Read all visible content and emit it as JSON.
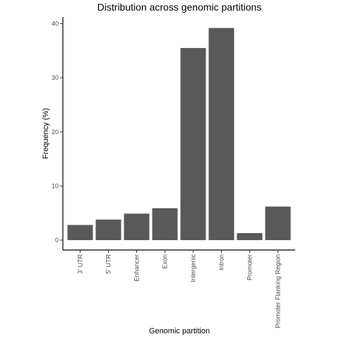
{
  "chart_data": {
    "type": "bar",
    "title": "Distribution across genomic partitions",
    "xlabel": "Genomic partition",
    "ylabel": "Frequency (%)",
    "categories": [
      "3' UTR",
      "5' UTR",
      "Enhancer",
      "Exon",
      "Intergenic",
      "Intron",
      "Promoter",
      "Promoter Flanking Region"
    ],
    "values": [
      2.8,
      3.8,
      4.9,
      5.9,
      35.5,
      39.2,
      1.3,
      6.2
    ],
    "ylim": [
      0,
      41.3
    ],
    "yticks": [
      0,
      10,
      20,
      30,
      40
    ],
    "grid": false,
    "legend": "none",
    "bar_color": "#595959"
  }
}
